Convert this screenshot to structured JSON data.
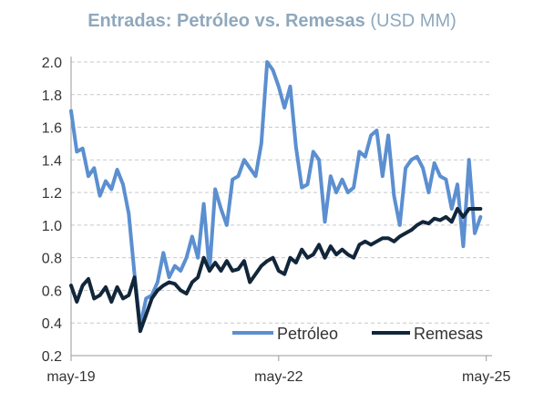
{
  "chart_data": {
    "type": "line",
    "title": "Entradas: Petróleo vs. Remesas",
    "title_unit": "(USD MM)",
    "xlabel": "",
    "ylabel": "",
    "ylim": [
      0.2,
      2.0
    ],
    "yticks": [
      2.0,
      1.8,
      1.6,
      1.4,
      1.2,
      1.0,
      0.8,
      0.6,
      0.4,
      0.2
    ],
    "xticks": [
      {
        "month": 0,
        "label": "may-19"
      },
      {
        "month": 36,
        "label": "may-22"
      },
      {
        "month": 72,
        "label": "may-25"
      }
    ],
    "x_range_months": [
      0,
      73
    ],
    "grid": "horizontal dashed",
    "legend_position": "bottom-right",
    "series": [
      {
        "name": "Petróleo",
        "color": "#5b8fd0",
        "values": [
          1.7,
          1.45,
          1.47,
          1.3,
          1.35,
          1.18,
          1.27,
          1.22,
          1.34,
          1.25,
          1.07,
          0.7,
          0.38,
          0.55,
          0.57,
          0.65,
          0.83,
          0.68,
          0.75,
          0.72,
          0.8,
          0.93,
          0.8,
          1.13,
          0.72,
          1.22,
          1.1,
          1.0,
          1.28,
          1.3,
          1.4,
          1.35,
          1.3,
          1.5,
          2.0,
          1.95,
          1.85,
          1.72,
          1.85,
          1.48,
          1.23,
          1.25,
          1.45,
          1.4,
          1.02,
          1.3,
          1.2,
          1.28,
          1.2,
          1.23,
          1.45,
          1.42,
          1.55,
          1.58,
          1.3,
          1.55,
          1.18,
          1.0,
          1.35,
          1.4,
          1.42,
          1.35,
          1.2,
          1.38,
          1.3,
          1.28,
          1.1,
          1.25,
          0.87,
          1.4,
          0.95,
          1.05
        ]
      },
      {
        "name": "Remesas",
        "color": "#12263a",
        "values": [
          0.63,
          0.53,
          0.63,
          0.67,
          0.55,
          0.57,
          0.62,
          0.53,
          0.62,
          0.55,
          0.57,
          0.68,
          0.35,
          0.45,
          0.55,
          0.6,
          0.63,
          0.65,
          0.64,
          0.6,
          0.58,
          0.65,
          0.68,
          0.8,
          0.72,
          0.77,
          0.72,
          0.78,
          0.72,
          0.73,
          0.78,
          0.65,
          0.7,
          0.75,
          0.78,
          0.8,
          0.72,
          0.7,
          0.8,
          0.77,
          0.85,
          0.8,
          0.82,
          0.88,
          0.8,
          0.87,
          0.82,
          0.85,
          0.82,
          0.8,
          0.88,
          0.9,
          0.88,
          0.9,
          0.92,
          0.92,
          0.9,
          0.93,
          0.95,
          0.97,
          1.0,
          1.02,
          1.01,
          1.04,
          1.03,
          1.05,
          1.02,
          1.1,
          1.05,
          1.1,
          1.1,
          1.1
        ]
      }
    ]
  }
}
